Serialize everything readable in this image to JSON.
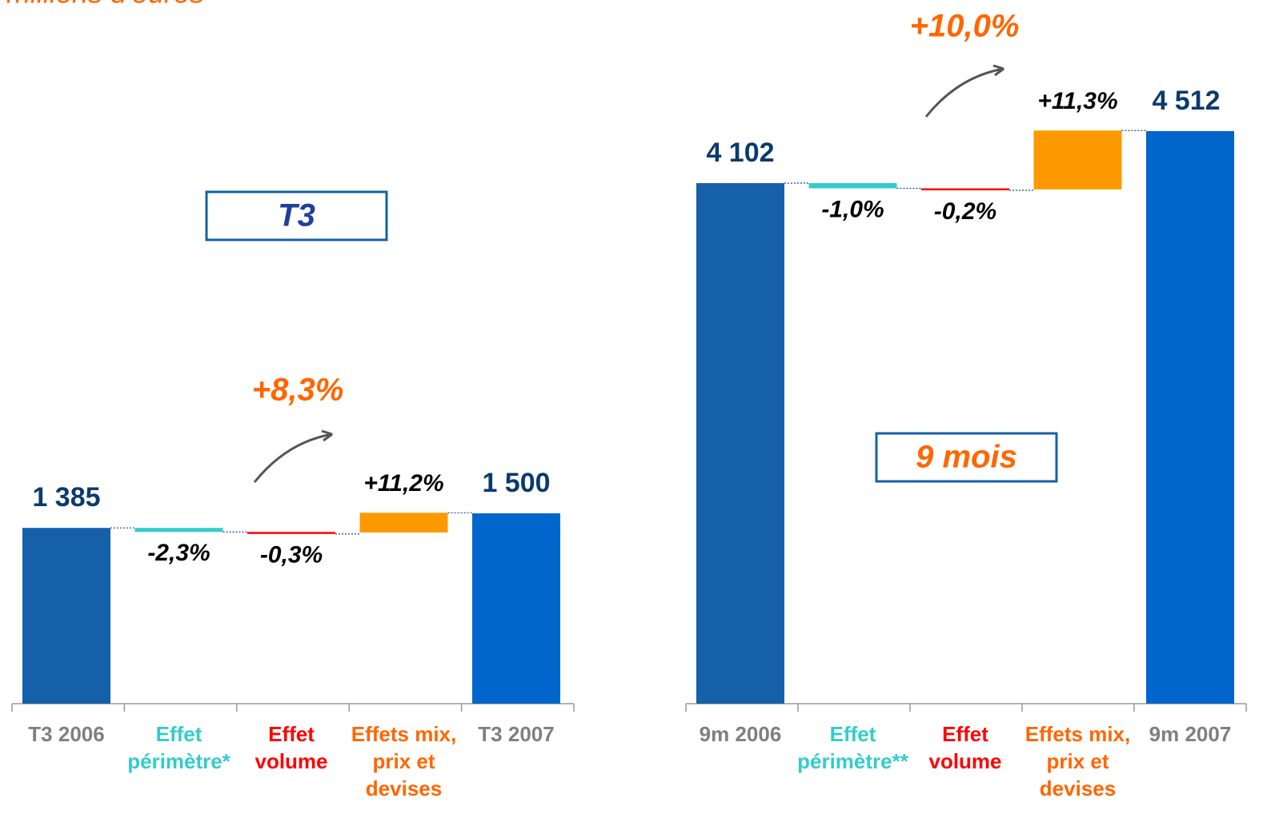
{
  "subtitle": "millions d'euros",
  "chart_data": [
    {
      "type": "waterfall",
      "box_label": "T3",
      "box_label_color": "#1f3f99",
      "growth_label": "+8,3%",
      "categories": [
        [
          "T3 2006"
        ],
        [
          "Effet",
          "périmètre*"
        ],
        [
          "Effet",
          "volume"
        ],
        [
          "Effets mix,",
          "prix et",
          "devises"
        ],
        [
          "T3 2007"
        ]
      ],
      "category_colors": [
        "#7f7f7f",
        "#33cccc",
        "#ff0000",
        "#ff6600",
        "#7f7f7f"
      ],
      "values": [
        1385,
        -2.3,
        -0.3,
        11.2,
        1500
      ],
      "value_labels": [
        "1 385",
        "-2,3%",
        "-0,3%",
        "+11,2%",
        "1 500"
      ],
      "colors": [
        "#1560a8",
        "#33cccc",
        "#ff0000",
        "#ff9900",
        "#0066cc"
      ]
    },
    {
      "type": "waterfall",
      "box_label": "9 mois",
      "box_label_color": "#ff6600",
      "growth_label": "+10,0%",
      "categories": [
        [
          "9m 2006"
        ],
        [
          "Effet",
          "périmètre**"
        ],
        [
          "Effet",
          "volume"
        ],
        [
          "Effets mix,",
          "prix et",
          "devises"
        ],
        [
          "9m 2007"
        ]
      ],
      "category_colors": [
        "#7f7f7f",
        "#33cccc",
        "#ff0000",
        "#ff6600",
        "#7f7f7f"
      ],
      "values": [
        4102,
        -1.0,
        -0.2,
        11.3,
        4512
      ],
      "value_labels": [
        "4 102",
        "-1,0%",
        "-0,2%",
        "+11,3%",
        "4 512"
      ],
      "colors": [
        "#1560a8",
        "#33cccc",
        "#ff0000",
        "#ff9900",
        "#0066cc"
      ]
    }
  ]
}
